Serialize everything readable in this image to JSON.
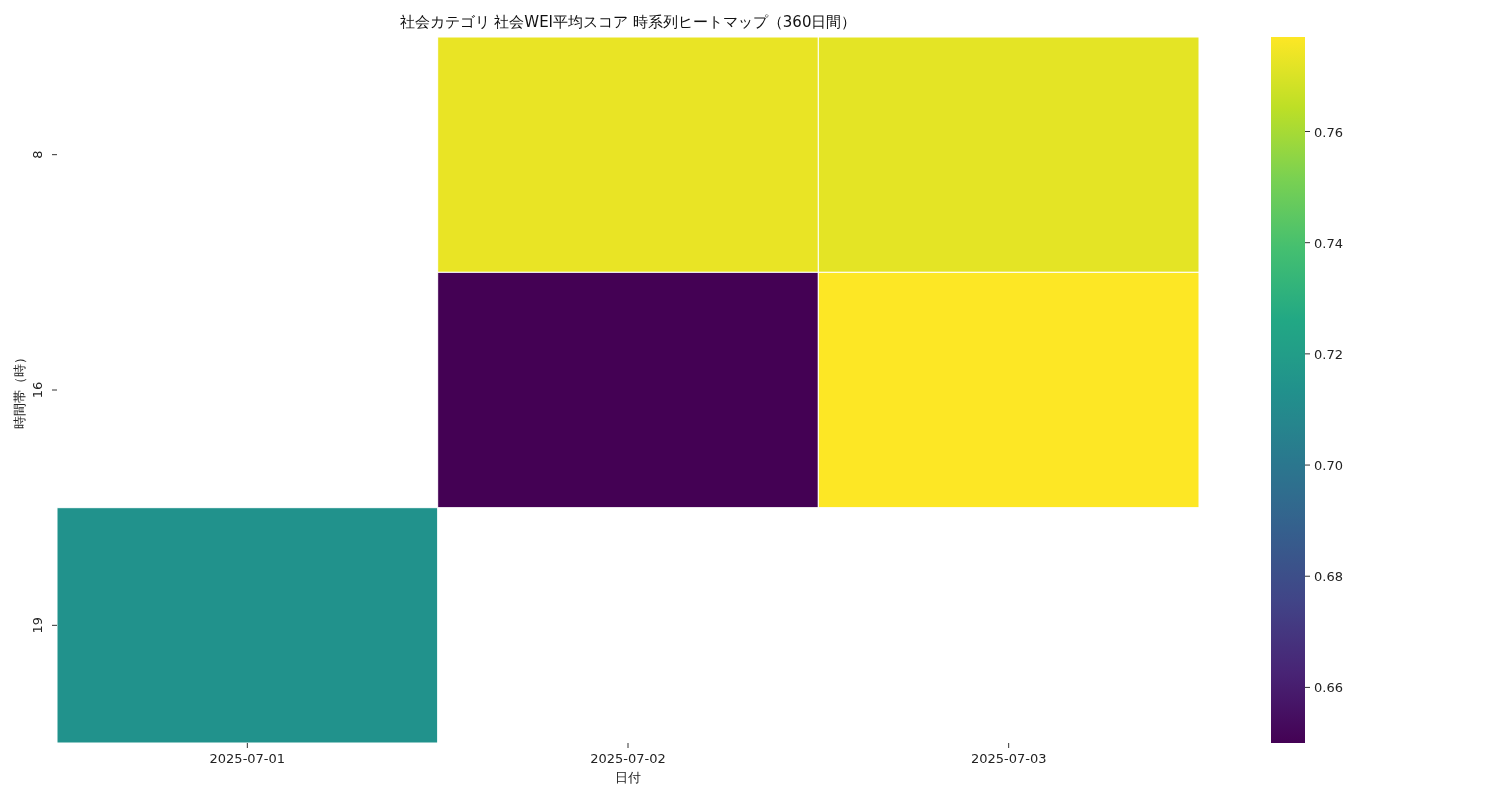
{
  "chart_data": {
    "type": "heatmap",
    "title": "社会カテゴリ 社会WEI平均スコア 時系列ヒートマップ（360日間）",
    "xlabel": "日付",
    "ylabel": "時間帯（時）",
    "categories": [
      "2025-07-01",
      "2025-07-02",
      "2025-07-03"
    ],
    "y_categories": [
      "8",
      "16",
      "19"
    ],
    "cells": [
      [
        null,
        0.773,
        0.772
      ],
      [
        null,
        0.65,
        0.777
      ],
      [
        0.714,
        null,
        null
      ]
    ],
    "clim": [
      0.65,
      0.777
    ],
    "cticks": [
      {
        "value": 0.66,
        "label": "0.66"
      },
      {
        "value": 0.68,
        "label": "0.68"
      },
      {
        "value": 0.7,
        "label": "0.70"
      },
      {
        "value": 0.72,
        "label": "0.72"
      },
      {
        "value": 0.74,
        "label": "0.74"
      },
      {
        "value": 0.76,
        "label": "0.76"
      }
    ]
  }
}
